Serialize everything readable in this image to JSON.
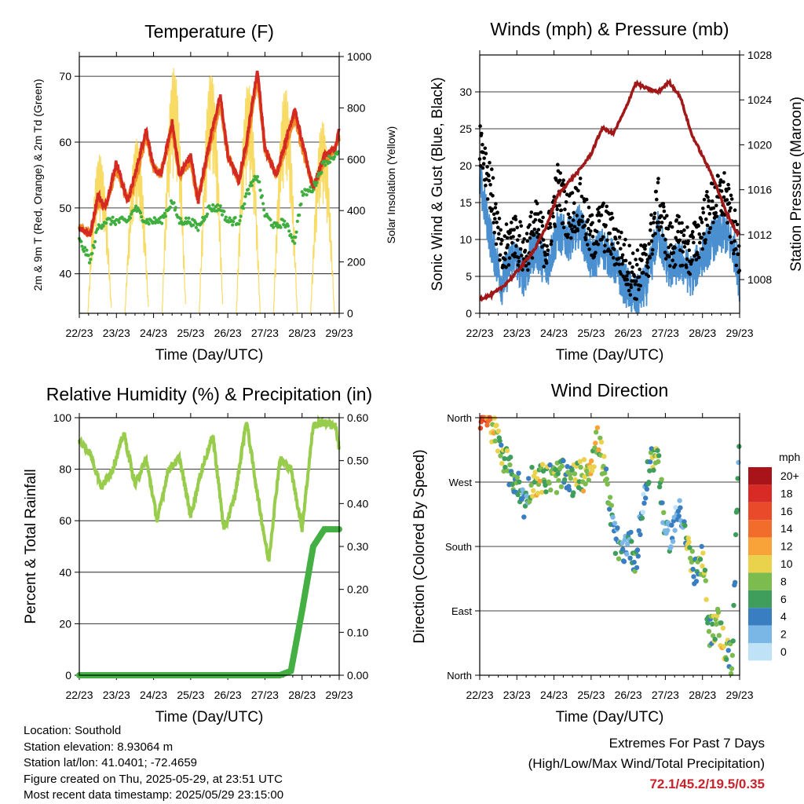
{
  "x_axis": {
    "label": "Time (Day/UTC)",
    "ticks": [
      "22/23",
      "23/23",
      "24/23",
      "25/23",
      "26/23",
      "27/23",
      "28/23",
      "29/23"
    ]
  },
  "colors": {
    "temp_red": "#d42a22",
    "temp_orange": "#f08a24",
    "dewpoint_green": "#3fae3f",
    "solar_yellow": "#f7d754",
    "gust_black": "#000000",
    "wind_blue": "#4a90d0",
    "pressure_maroon": "#a01818",
    "humidity_green": "#98cc4c",
    "rain_green": "#44b044",
    "extremes_red": "#c8232c"
  },
  "info": {
    "location": "Location: Southold",
    "elevation": "Station elevation: 8.93064 m",
    "latlon": "Station lat/lon: 41.0401; -72.4659",
    "created": "Figure created on Thu, 2025-05-29, at 23:51 UTC",
    "recent": "Most recent data timestamp: 2025/05/29 23:15:00"
  },
  "extremes": {
    "title": "Extremes For Past 7 Days",
    "subtitle": "(High/Low/Max Wind/Total Precipitation)",
    "values": "72.1/45.2/19.5/0.35"
  },
  "chart_data": [
    {
      "type": "line",
      "title": "Temperature (F)",
      "xlabel": "Time (Day/UTC)",
      "ylabel": "2m & 9m T (Red, Orange) & 2m Td (Green)",
      "y2label": "Solar Insolation (Yellow)",
      "ylim": [
        34,
        73
      ],
      "y2lim": [
        0,
        1000
      ],
      "yticks": [
        40,
        50,
        60,
        70
      ],
      "y2ticks": [
        0,
        200,
        400,
        600,
        800,
        1000
      ],
      "grid": "horizontal",
      "x": [
        0,
        0.3,
        0.5,
        0.7,
        1.0,
        1.3,
        1.5,
        1.8,
        2.0,
        2.2,
        2.5,
        2.7,
        3.0,
        3.2,
        3.5,
        3.8,
        4.0,
        4.3,
        4.5,
        4.8,
        5.0,
        5.3,
        5.5,
        5.8,
        6.0,
        6.3,
        6.6,
        6.9,
        7.0
      ],
      "series": [
        {
          "name": "2m T",
          "axis": "left",
          "color": "temp_red",
          "values": [
            47,
            46,
            52,
            50,
            57,
            51,
            55,
            62,
            56,
            55,
            63,
            55,
            58,
            51,
            60,
            67,
            58,
            54,
            60,
            71,
            59,
            55,
            59,
            65,
            60,
            53,
            58,
            59,
            62
          ]
        },
        {
          "name": "9m T",
          "axis": "left",
          "color": "temp_orange",
          "values": [
            47,
            46,
            51,
            50,
            56,
            51,
            54,
            61,
            56,
            55,
            62,
            55,
            57,
            51,
            59,
            66,
            58,
            54,
            59,
            70,
            59,
            55,
            58,
            64,
            59,
            53,
            57,
            59,
            61
          ]
        },
        {
          "name": "2m Td",
          "axis": "left",
          "color": "dewpoint_green",
          "values": [
            45,
            42,
            47,
            48,
            48,
            48,
            50,
            48,
            48,
            48,
            51,
            48,
            48,
            47,
            50,
            50,
            48,
            48,
            52,
            55,
            49,
            47,
            48,
            45,
            52,
            53,
            57,
            58,
            58
          ]
        },
        {
          "name": "Solar Insolation",
          "axis": "right",
          "color": "solar_yellow",
          "peaks_x": [
            0.55,
            1.55,
            2.55,
            3.55,
            4.55,
            5.55,
            6.55
          ],
          "peaks": [
            620,
            680,
            960,
            940,
            900,
            880,
            750
          ]
        }
      ]
    },
    {
      "type": "line",
      "title": "Winds (mph) & Pressure (mb)",
      "xlabel": "Time (Day/UTC)",
      "ylabel": "Sonic Wind & Gust (Blue, Black)",
      "y2label": "Station Pressure (Maroon)",
      "ylim": [
        0,
        35
      ],
      "y2lim": [
        1005,
        1028
      ],
      "yticks": [
        0,
        5,
        10,
        15,
        20,
        25,
        30
      ],
      "y2ticks": [
        1008,
        1012,
        1016,
        1020,
        1024,
        1028
      ],
      "grid": "horizontal",
      "x": [
        0,
        0.3,
        0.6,
        0.9,
        1.2,
        1.5,
        1.8,
        2.1,
        2.4,
        2.7,
        3.0,
        3.3,
        3.6,
        3.9,
        4.2,
        4.5,
        4.8,
        5.1,
        5.4,
        5.7,
        6.0,
        6.3,
        6.6,
        6.9,
        7.0
      ],
      "series": [
        {
          "name": "Gust",
          "axis": "left",
          "color": "gust_black",
          "values": [
            24,
            17,
            7,
            11,
            8,
            12,
            9,
            17,
            13,
            15,
            10,
            12,
            10,
            7,
            5,
            7,
            15,
            9,
            10,
            8,
            12,
            15,
            16,
            10,
            6
          ]
        },
        {
          "name": "Sonic Wind",
          "axis": "left",
          "color": "wind_blue",
          "values": [
            18,
            10,
            4,
            8,
            5,
            9,
            6,
            11,
            10,
            12,
            7,
            9,
            7,
            4,
            2,
            4,
            11,
            6,
            7,
            5,
            8,
            10,
            11,
            8,
            4
          ]
        },
        {
          "name": "Station Pressure",
          "axis": "right",
          "color": "pressure_maroon",
          "values": [
            1006.3,
            1006.6,
            1007.3,
            1008.3,
            1009.5,
            1010.8,
            1012.8,
            1015.5,
            1016.7,
            1017.8,
            1019.2,
            1021.5,
            1021.0,
            1023.0,
            1025.5,
            1025.0,
            1024.7,
            1025.6,
            1024.3,
            1021.0,
            1019.0,
            1017.0,
            1014.3,
            1012.3,
            1012.0
          ]
        }
      ]
    },
    {
      "type": "line",
      "title": "Relative Humidity (%) & Precipitation (in)",
      "xlabel": "Time (Day/UTC)",
      "ylabel": "Percent & Total Rainfall",
      "ylim": [
        0,
        100
      ],
      "y2lim": [
        0,
        0.6
      ],
      "yticks": [
        0,
        20,
        40,
        60,
        80,
        100
      ],
      "y2ticks": [
        "0.00",
        "0.10",
        "0.20",
        "0.30",
        "0.40",
        "0.50",
        "0.60"
      ],
      "grid": "horizontal",
      "x": [
        0,
        0.3,
        0.6,
        0.9,
        1.2,
        1.5,
        1.8,
        2.1,
        2.4,
        2.7,
        3.0,
        3.3,
        3.6,
        3.9,
        4.2,
        4.5,
        4.8,
        5.1,
        5.4,
        5.7,
        6.0,
        6.3,
        6.6,
        6.9,
        7.0
      ],
      "series": [
        {
          "name": "Relative Humidity",
          "axis": "left",
          "color": "humidity_green",
          "values": [
            91,
            86,
            73,
            80,
            94,
            74,
            84,
            60,
            80,
            84,
            62,
            80,
            93,
            56,
            70,
            99,
            70,
            44,
            84,
            80,
            57,
            97,
            98,
            97,
            88
          ]
        },
        {
          "name": "Total Precipitation",
          "axis": "right",
          "color": "rain_green",
          "values": [
            0,
            0,
            0,
            0,
            0,
            0,
            0,
            0,
            0,
            0,
            0,
            0,
            0,
            0,
            0,
            0,
            0,
            0,
            0,
            0.01,
            0.15,
            0.3,
            0.34,
            0.34,
            0.34
          ]
        }
      ]
    },
    {
      "type": "scatter",
      "title": "Wind Direction",
      "xlabel": "Time (Day/UTC)",
      "ylabel": "Direction (Colored By Speed)",
      "yticks": [
        "North",
        "West",
        "South",
        "East",
        "North"
      ],
      "grid": "horizontal",
      "legend": {
        "title": "mph",
        "position": "right",
        "labels": [
          "20+",
          "18",
          "16",
          "14",
          "12",
          "10",
          "8",
          "6",
          "4",
          "2",
          "0"
        ],
        "colors": [
          "#a8141a",
          "#d92b26",
          "#e84a2a",
          "#f26c2b",
          "#f7a33a",
          "#ead24d",
          "#7cbc4e",
          "#3f9e5c",
          "#3a7ec2",
          "#7ab7e6",
          "#bfe2f6"
        ]
      },
      "x": [
        0,
        0.2,
        0.4,
        0.6,
        0.8,
        1.0,
        1.2,
        1.4,
        1.6,
        1.8,
        2.0,
        2.2,
        2.4,
        2.6,
        2.8,
        3.0,
        3.2,
        3.4,
        3.6,
        3.8,
        4.0,
        4.2,
        4.4,
        4.6,
        4.8,
        5.0,
        5.2,
        5.4,
        5.6,
        5.8,
        6.0,
        6.2,
        6.4,
        6.6,
        6.8,
        7.0
      ],
      "direction_deg": [
        360,
        355,
        340,
        315,
        285,
        270,
        240,
        272,
        275,
        275,
        275,
        280,
        270,
        275,
        280,
        300,
        330,
        270,
        200,
        170,
        190,
        160,
        240,
        300,
        310,
        190,
        200,
        240,
        180,
        140,
        160,
        60,
        75,
        40,
        20,
        350
      ],
      "speed_mph": [
        18,
        14,
        10,
        7,
        6,
        6,
        3,
        7,
        9,
        8,
        7,
        8,
        6,
        8,
        9,
        10,
        9,
        7,
        4,
        5,
        3,
        6,
        2,
        6,
        8,
        4,
        3,
        2,
        9,
        6,
        8,
        7,
        8,
        9,
        6,
        3
      ]
    }
  ]
}
